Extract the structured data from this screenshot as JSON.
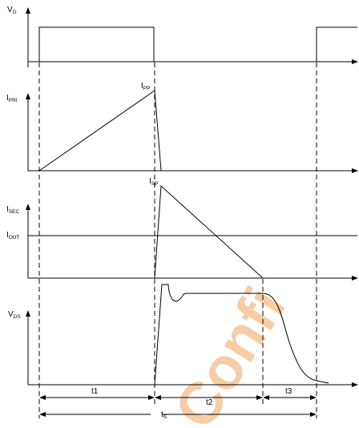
{
  "signals": {
    "vg": {
      "main": "V",
      "sub": "G"
    },
    "ipri": {
      "main": "I",
      "sub": "PRI"
    },
    "isec": {
      "main": "I",
      "sub": "SEC"
    },
    "iout": {
      "main": "I",
      "sub": "OUT"
    },
    "vds": {
      "main": "V",
      "sub": "DS"
    }
  },
  "annotations": {
    "ipp": {
      "main": "I",
      "sub": "PP"
    },
    "isp": {
      "main": "I",
      "sub": "SP"
    }
  },
  "intervals": {
    "t1": "t1",
    "t2": "t2",
    "t3": "t3",
    "ts": {
      "main": "t",
      "sub": "S"
    }
  },
  "watermark": "Confi",
  "colors": {
    "line": "#000000",
    "watermark": "#f6c89c"
  }
}
